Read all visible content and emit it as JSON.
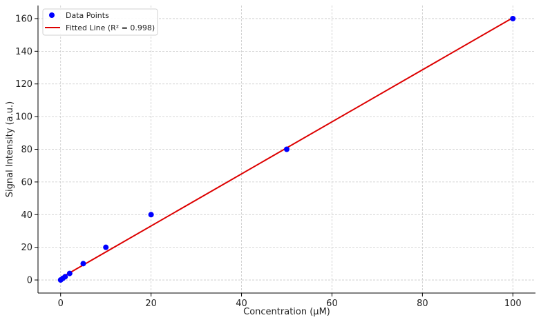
{
  "chart_data": {
    "type": "scatter",
    "xlabel": "Concentration (μM)",
    "ylabel": "Signal Intensity (a.u.)",
    "xlim": [
      -5,
      105
    ],
    "ylim": [
      -8,
      168
    ],
    "xticks": [
      0,
      20,
      40,
      60,
      80,
      100
    ],
    "yticks": [
      0,
      20,
      40,
      60,
      80,
      100,
      120,
      140,
      160
    ],
    "grid": true,
    "legend_position": "top-left",
    "series": [
      {
        "name": "Data Points",
        "kind": "scatter",
        "color": "#0000ff",
        "x": [
          0,
          0.5,
          1,
          2,
          5,
          10,
          20,
          50,
          100
        ],
        "y": [
          0,
          1,
          2,
          4,
          10,
          20,
          40,
          80,
          160
        ]
      },
      {
        "name": "Fitted Line (R² = 0.998)",
        "kind": "line",
        "color": "#dd0000",
        "x": [
          0,
          100
        ],
        "y": [
          1.2,
          160.5
        ]
      }
    ]
  }
}
